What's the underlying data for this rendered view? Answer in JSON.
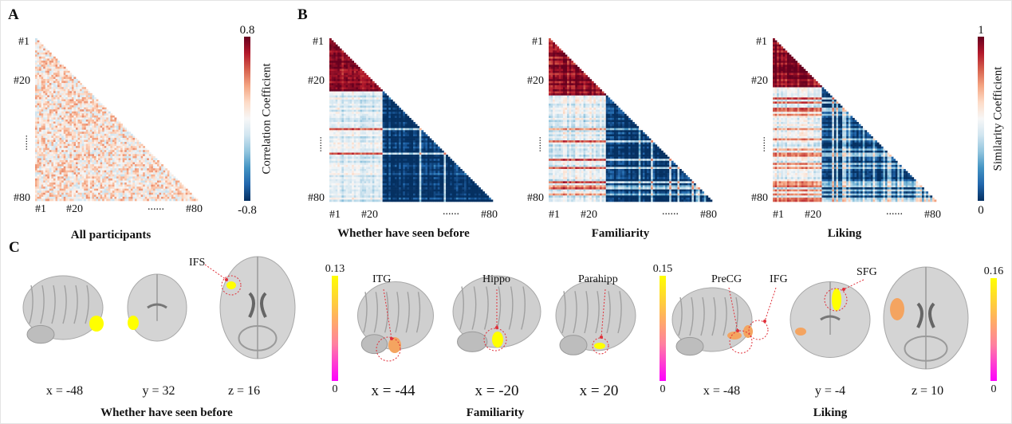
{
  "panels": {
    "a": "A",
    "b": "B",
    "c": "C"
  },
  "chart_data": [
    {
      "type": "heatmap",
      "title": "All participants",
      "shape": "lower-triangle",
      "n": 80,
      "row_ticks": [
        "#1",
        "#20",
        "......",
        "#80"
      ],
      "col_ticks": [
        "#1",
        "#20",
        "......",
        "#80"
      ],
      "colorbar": {
        "label": "Correlation Coefficient",
        "min": -0.8,
        "max": 0.8,
        "min_label": "-0.8",
        "max_label": "0.8",
        "colormap": "RdBu_r"
      }
    },
    {
      "type": "heatmap",
      "title": "Whether have seen before",
      "shape": "lower-triangle",
      "n": 80,
      "row_ticks": [
        "#1",
        "#20",
        "......",
        "#80"
      ],
      "col_ticks": [
        "#1",
        "#20",
        "......",
        "#80"
      ],
      "colorbar": {
        "label": "Similarity Coefficient",
        "min": 0,
        "max": 1,
        "min_label": "0",
        "max_label": "1",
        "colormap": "RdBu_r"
      }
    },
    {
      "type": "heatmap",
      "title": "Familiarity",
      "shape": "lower-triangle",
      "n": 80,
      "row_ticks": [
        "#1",
        "#20",
        "......",
        "#80"
      ],
      "col_ticks": [
        "#1",
        "#20",
        "......",
        "#80"
      ]
    },
    {
      "type": "heatmap",
      "title": "Liking",
      "shape": "lower-triangle",
      "n": 80,
      "row_ticks": [
        "#1",
        "#20",
        "......",
        "#80"
      ],
      "col_ticks": [
        "#1",
        "#20",
        "......",
        "#80"
      ]
    }
  ],
  "brain": {
    "seen": {
      "title": "Whether have seen before",
      "cb_max": "0.13",
      "cb_min": "0",
      "slices": [
        "x = -48",
        "y = 32",
        "z = 16"
      ],
      "rois": [
        "IFS"
      ]
    },
    "fam": {
      "title": "Familiarity",
      "cb_max": "0.15",
      "cb_min": "0",
      "slices": [
        "x = -44",
        "x = -20",
        "x = 20"
      ],
      "rois": [
        "ITG",
        "Hippo",
        "Parahipp"
      ]
    },
    "lik": {
      "title": "Liking",
      "cb_max": "0.16",
      "cb_min": "0",
      "slices": [
        "x = -48",
        "y = -4",
        "z = 10"
      ],
      "rois": [
        "PreCG",
        "IFG",
        "SFG"
      ]
    }
  },
  "colors": {
    "highlight": "#ffff00",
    "mid": "#f4a460",
    "low": "#ff00ff",
    "roi_circle": "#e0303a"
  }
}
